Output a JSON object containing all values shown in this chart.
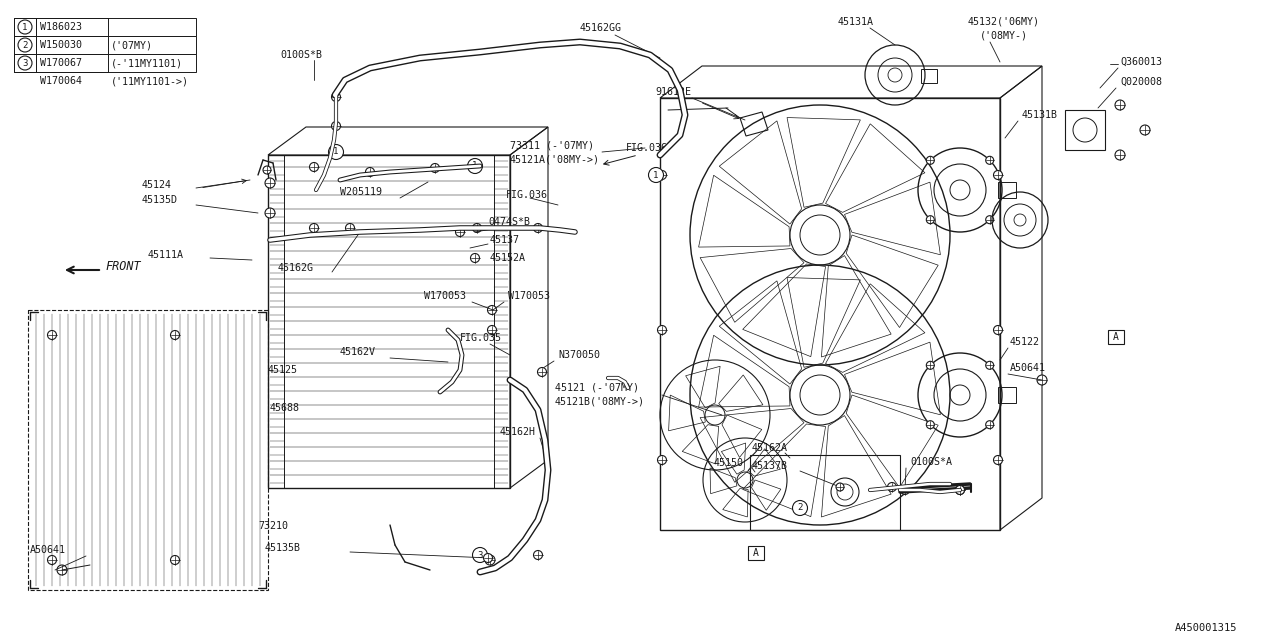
{
  "bg_color": "#ffffff",
  "line_color": "#1a1a1a",
  "diagram_id": "A450001315",
  "parts_table": [
    [
      "1",
      "W186023",
      ""
    ],
    [
      "2",
      "W150030",
      "('07MY)"
    ],
    [
      "3",
      "W170067",
      "(-'11MY1101)"
    ],
    [
      "",
      "W170064",
      "('11MY1101->)"
    ]
  ]
}
